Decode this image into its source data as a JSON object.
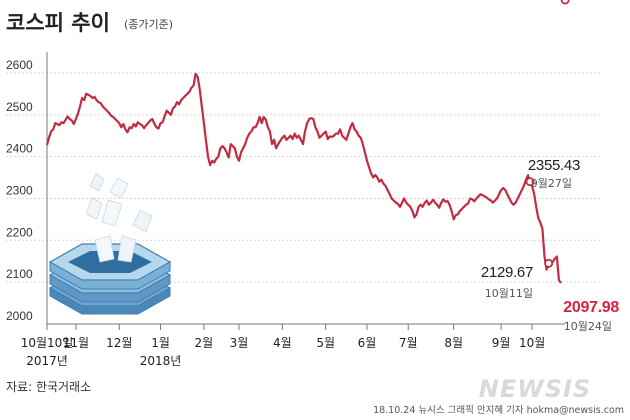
{
  "header": {
    "title": "코스피 추이",
    "subtitle": "(종가기준)"
  },
  "source": "자료: 한국거래소",
  "credit": "18.10.24  뉴시스 그래픽 안지혜 기자 hokma@newsis.com",
  "watermark": "NEWSIS",
  "colors": {
    "line": "#c22b42",
    "marker_fill": "#ffffff",
    "highlight": "#d8233f",
    "axis": "#777777"
  },
  "chart_data": {
    "type": "line",
    "title": "코스피 추이",
    "subtitle": "(종가기준)",
    "xlabel": "",
    "ylabel": "",
    "ylim": [
      2000,
      2650
    ],
    "y_ticks": [
      2000,
      2100,
      2200,
      2300,
      2400,
      2500,
      2600
    ],
    "x_ticks": [
      {
        "label": "10월10일",
        "year": "2017년",
        "index": 0
      },
      {
        "label": "11월",
        "index": 14
      },
      {
        "label": "12월",
        "index": 35
      },
      {
        "label": "1월",
        "year": "2018년",
        "index": 55
      },
      {
        "label": "2월",
        "index": 76
      },
      {
        "label": "3월",
        "index": 93
      },
      {
        "label": "4월",
        "index": 114
      },
      {
        "label": "5월",
        "index": 135
      },
      {
        "label": "6월",
        "index": 155
      },
      {
        "label": "7월",
        "index": 175
      },
      {
        "label": "8월",
        "index": 197
      },
      {
        "label": "9월",
        "index": 220
      },
      {
        "label": "10월",
        "index": 235
      }
    ],
    "series": [
      {
        "values": [
          2428,
          2446,
          2460,
          2465,
          2480,
          2478,
          2475,
          2482,
          2480,
          2488,
          2496,
          2490,
          2486,
          2478,
          2490,
          2503,
          2520,
          2540,
          2535,
          2550,
          2548,
          2545,
          2540,
          2543,
          2535,
          2530,
          2528,
          2520,
          2515,
          2510,
          2505,
          2498,
          2495,
          2490,
          2485,
          2480,
          2470,
          2478,
          2465,
          2458,
          2470,
          2468,
          2478,
          2472,
          2482,
          2478,
          2475,
          2468,
          2475,
          2480,
          2486,
          2490,
          2479,
          2470,
          2467,
          2480,
          2482,
          2497,
          2510,
          2505,
          2500,
          2515,
          2520,
          2530,
          2525,
          2535,
          2540,
          2545,
          2550,
          2555,
          2565,
          2570,
          2598,
          2590,
          2560,
          2520,
          2480,
          2440,
          2400,
          2380,
          2390,
          2386,
          2395,
          2400,
          2420,
          2425,
          2420,
          2410,
          2398,
          2430,
          2425,
          2420,
          2400,
          2390,
          2410,
          2420,
          2430,
          2445,
          2455,
          2460,
          2470,
          2470,
          2480,
          2495,
          2480,
          2495,
          2488,
          2470,
          2460,
          2430,
          2440,
          2420,
          2430,
          2438,
          2445,
          2450,
          2440,
          2445,
          2450,
          2442,
          2455,
          2445,
          2450,
          2440,
          2430,
          2460,
          2480,
          2490,
          2492,
          2490,
          2470,
          2460,
          2445,
          2450,
          2455,
          2460,
          2442,
          2448,
          2447,
          2450,
          2455,
          2455,
          2465,
          2450,
          2445,
          2440,
          2455,
          2470,
          2480,
          2465,
          2460,
          2450,
          2445,
          2430,
          2410,
          2390,
          2375,
          2360,
          2350,
          2356,
          2350,
          2340,
          2345,
          2335,
          2330,
          2320,
          2310,
          2300,
          2295,
          2290,
          2287,
          2280,
          2290,
          2300,
          2290,
          2285,
          2280,
          2270,
          2255,
          2262,
          2280,
          2285,
          2280,
          2290,
          2295,
          2285,
          2290,
          2297,
          2290,
          2285,
          2278,
          2290,
          2298,
          2292,
          2294,
          2285,
          2270,
          2250,
          2260,
          2262,
          2270,
          2275,
          2280,
          2285,
          2288,
          2300,
          2298,
          2293,
          2300,
          2305,
          2310,
          2308,
          2305,
          2302,
          2298,
          2295,
          2290,
          2295,
          2300,
          2310,
          2320,
          2325,
          2320,
          2310,
          2300,
          2290,
          2285,
          2290,
          2300,
          2310,
          2320,
          2330,
          2344,
          2355.43,
          2340,
          2330,
          2310,
          2280,
          2253,
          2242,
          2228,
          2161,
          2129.67,
          2145,
          2150,
          2148,
          2156,
          2161,
          2105,
          2097.98
        ]
      }
    ],
    "annotations": [
      {
        "index": 234,
        "value": "2355.43",
        "date": "9월27일"
      },
      {
        "index": 243,
        "value": "2129.67",
        "date": "10월11일"
      },
      {
        "index": 251,
        "value": "2097.98",
        "date": "10월24일",
        "highlight": true
      }
    ]
  }
}
